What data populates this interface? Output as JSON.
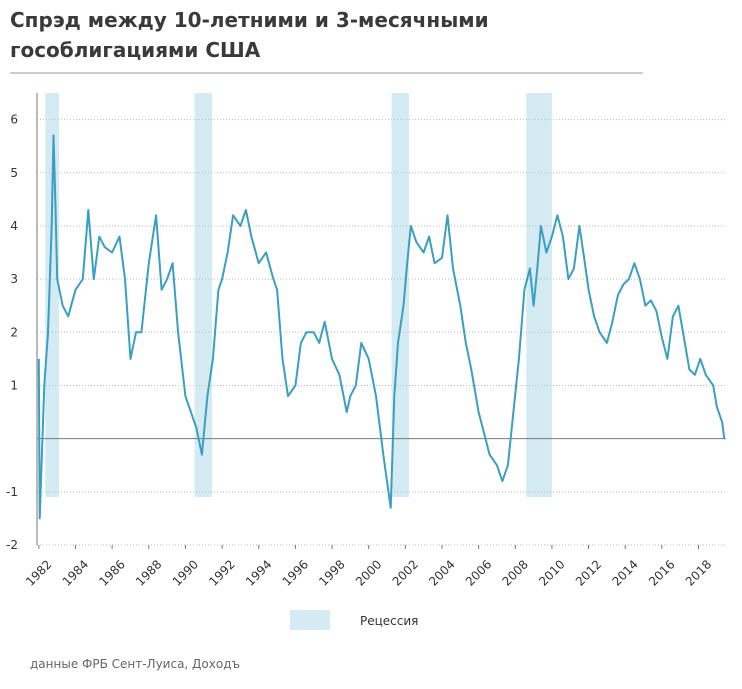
{
  "chart_data": {
    "type": "line",
    "title": [
      "Спрэд между 10-летними и 3-месячными",
      "гособлигациями США"
    ],
    "source": "данные ФРБ Сент-Луиса, Доходъ",
    "legend_label": "Рецессия",
    "recession_color": "#d5ebf3",
    "recessions": [
      [
        1982.35,
        1983.1
      ],
      [
        1990.5,
        1991.45
      ],
      [
        2001.25,
        2002.2
      ],
      [
        2008.6,
        2010.0
      ]
    ],
    "xlim": [
      1981.9,
      2019.5
    ],
    "xticks": [
      1982,
      1984,
      1986,
      1988,
      1990,
      1992,
      1994,
      1996,
      1998,
      2000,
      2002,
      2004,
      2006,
      2008,
      2010,
      2012,
      2014,
      2016,
      2018
    ],
    "ylim": [
      -2,
      6.5
    ],
    "yticks": [
      6,
      5,
      4,
      3,
      2,
      1,
      -1,
      -2
    ],
    "grid": true,
    "x": [
      1982.0,
      1982.05,
      1982.3,
      1982.5,
      1982.7,
      1982.8,
      1982.9,
      1983.0,
      1983.3,
      1983.6,
      1984.0,
      1984.4,
      1984.7,
      1985.0,
      1985.3,
      1985.6,
      1986.0,
      1986.4,
      1986.7,
      1987.0,
      1987.3,
      1987.6,
      1988.0,
      1988.4,
      1988.7,
      1989.0,
      1989.3,
      1989.6,
      1990.0,
      1990.3,
      1990.6,
      1990.9,
      1991.2,
      1991.5,
      1991.8,
      1992.0,
      1992.3,
      1992.6,
      1993.0,
      1993.3,
      1993.6,
      1994.0,
      1994.4,
      1994.8,
      1995.0,
      1995.3,
      1995.6,
      1996.0,
      1996.3,
      1996.6,
      1997.0,
      1997.3,
      1997.6,
      1998.0,
      1998.4,
      1998.8,
      1999.0,
      1999.3,
      1999.6,
      2000.0,
      2000.4,
      2000.8,
      2001.0,
      2001.2,
      2001.4,
      2001.6,
      2001.9,
      2002.1,
      2002.3,
      2002.6,
      2003.0,
      2003.3,
      2003.6,
      2004.0,
      2004.3,
      2004.6,
      2005.0,
      2005.3,
      2005.6,
      2006.0,
      2006.3,
      2006.6,
      2007.0,
      2007.3,
      2007.6,
      2007.9,
      2008.2,
      2008.5,
      2008.8,
      2009.0,
      2009.2,
      2009.4,
      2009.7,
      2010.0,
      2010.3,
      2010.6,
      2010.9,
      2011.2,
      2011.5,
      2011.8,
      2012.0,
      2012.3,
      2012.6,
      2013.0,
      2013.3,
      2013.6,
      2013.9,
      2014.2,
      2014.5,
      2014.8,
      2015.1,
      2015.4,
      2015.7,
      2016.0,
      2016.3,
      2016.6,
      2016.9,
      2017.2,
      2017.5,
      2017.8,
      2018.1,
      2018.4,
      2018.8,
      2019.0,
      2019.3,
      2019.4
    ],
    "series": [
      {
        "color": "#3a9fc0",
        "values": [
          1.5,
          -1.5,
          1.0,
          2.0,
          4,
          5.7,
          4.5,
          3.0,
          2.5,
          2.3,
          2.8,
          3.0,
          4.3,
          3.0,
          3.8,
          3.6,
          3.5,
          3.8,
          3.0,
          1.5,
          2.0,
          2.0,
          3.3,
          4.2,
          2.8,
          3.0,
          3.3,
          2.0,
          0.8,
          0.5,
          0.2,
          -0.3,
          0.8,
          1.5,
          2.8,
          3.0,
          3.5,
          4.2,
          4.0,
          4.3,
          3.8,
          3.3,
          3.5,
          3.0,
          2.8,
          1.5,
          0.8,
          1.0,
          1.8,
          2.0,
          2.0,
          1.8,
          2.2,
          1.5,
          1.2,
          0.5,
          0.8,
          1.0,
          1.8,
          1.5,
          0.8,
          -0.3,
          -0.8,
          -1.3,
          0.8,
          1.8,
          2.5,
          3.3,
          4.0,
          3.7,
          3.5,
          3.8,
          3.3,
          3.4,
          4.2,
          3.2,
          2.5,
          1.8,
          1.3,
          0.5,
          0.1,
          -0.3,
          -0.5,
          -0.8,
          -0.5,
          0.5,
          1.5,
          2.8,
          3.2,
          2.5,
          3.2,
          4.0,
          3.5,
          3.8,
          4.2,
          3.8,
          3.0,
          3.2,
          4.0,
          3.3,
          2.8,
          2.3,
          2.0,
          1.8,
          2.2,
          2.7,
          2.9,
          3.0,
          3.3,
          3.0,
          2.5,
          2.6,
          2.4,
          1.9,
          1.5,
          2.3,
          2.5,
          1.9,
          1.3,
          1.2,
          1.5,
          1.2,
          1.0,
          0.6,
          0.3,
          0.0
        ]
      }
    ]
  }
}
